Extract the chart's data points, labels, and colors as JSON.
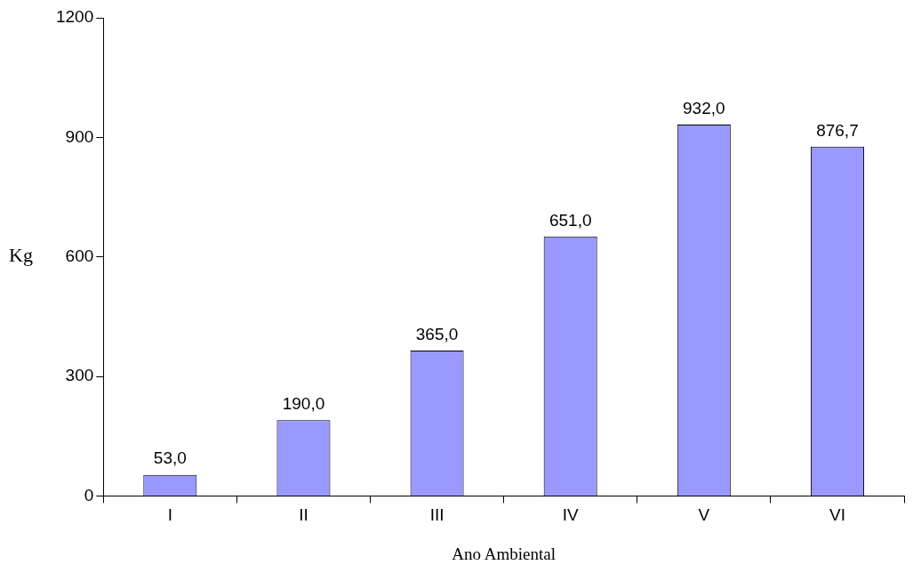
{
  "chart_data": {
    "type": "bar",
    "xlabel": "Ano Ambiental",
    "ylabel": "Kg",
    "categories": [
      "I",
      "II",
      "III",
      "IV",
      "V",
      "VI"
    ],
    "values": [
      53,
      190,
      365,
      651,
      932,
      876.7
    ],
    "value_labels": [
      "53,0",
      "190,0",
      "365,0",
      "651,0",
      "932,0",
      "876,7"
    ],
    "color": "#9999ff",
    "ylim": [
      0,
      1200
    ],
    "yticks": [
      0,
      300,
      600,
      900,
      1200
    ],
    "grid": false,
    "legend": false
  }
}
